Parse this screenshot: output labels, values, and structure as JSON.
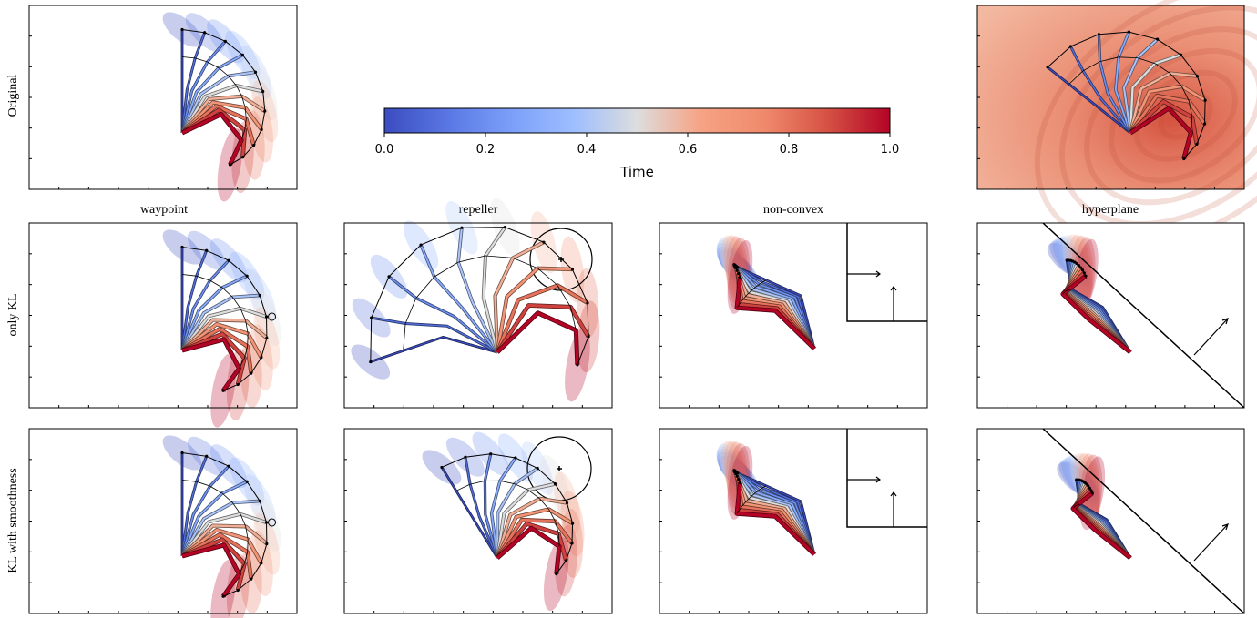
{
  "colors": {
    "start": "#3b4cc0",
    "mid": "#dddddd",
    "end": "#b40426",
    "axis": "#000000"
  },
  "chart_data": {
    "type": "robot-arm trajectory panels",
    "colorbar": {
      "label": "Time",
      "ticks": [
        "0.0",
        "0.2",
        "0.4",
        "0.6",
        "0.8",
        "1.0"
      ],
      "range": [
        0.0,
        1.0
      ],
      "colormap": "coolwarm"
    },
    "row_labels": [
      "Original",
      "only KL",
      "KL with smoothness"
    ],
    "column_titles": [
      "waypoint",
      "repeller",
      "non-convex",
      "hyperplane"
    ],
    "panels": [
      {
        "id": "original-left",
        "row": 0,
        "col": 0,
        "variant": "orig_left"
      },
      {
        "id": "original-right",
        "row": 0,
        "col": 3,
        "variant": "orig_right"
      },
      {
        "id": "onlykl-waypoint",
        "row": 1,
        "col": 0,
        "variant": "waypoint",
        "obstacle": "waypoint"
      },
      {
        "id": "onlykl-repeller",
        "row": 1,
        "col": 1,
        "variant": "repeller",
        "obstacle": "circle"
      },
      {
        "id": "onlykl-nonconvex",
        "row": 1,
        "col": 2,
        "variant": "nonconvex",
        "obstacle": "corner"
      },
      {
        "id": "onlykl-hyperplane",
        "row": 1,
        "col": 3,
        "variant": "hyperplane",
        "obstacle": "plane"
      },
      {
        "id": "smooth-waypoint",
        "row": 2,
        "col": 0,
        "variant": "waypoint_s",
        "obstacle": "waypoint"
      },
      {
        "id": "smooth-repeller",
        "row": 2,
        "col": 1,
        "variant": "repeller_s",
        "obstacle": "circle"
      },
      {
        "id": "smooth-nonconvex",
        "row": 2,
        "col": 2,
        "variant": "nonconvex_s",
        "obstacle": "corner"
      },
      {
        "id": "smooth-hyperplane",
        "row": 2,
        "col": 3,
        "variant": "hyperplane_s",
        "obstacle": "plane"
      }
    ]
  }
}
